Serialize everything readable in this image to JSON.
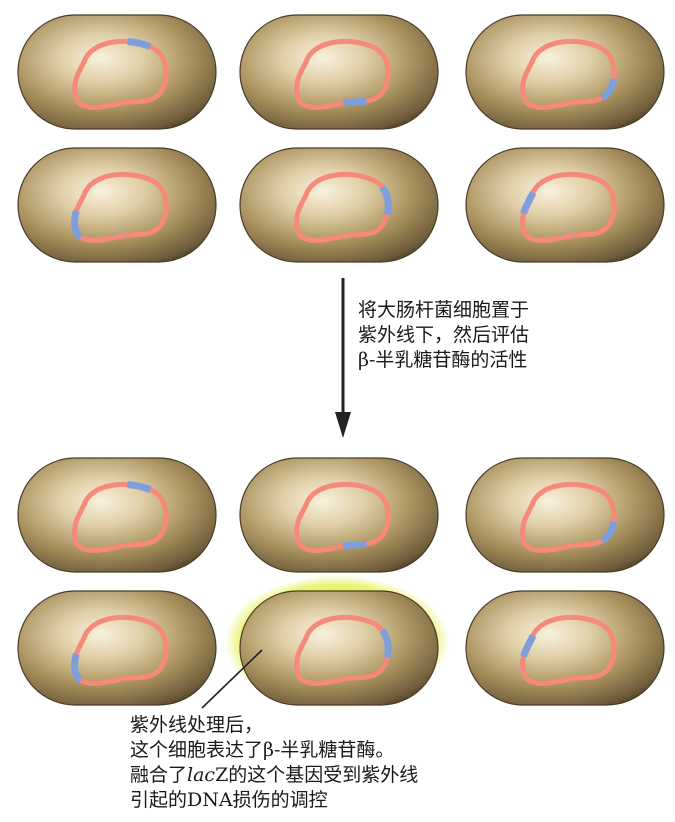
{
  "figure": {
    "step_text": [
      "将大肠杆菌细胞置于",
      "紫外线下，然后评估",
      "β-半乳糖苷酶的活性"
    ],
    "caption": {
      "line1": "紫外线处理后，",
      "line2": "这个细胞表达了β-半乳糖苷酶。",
      "line3_pre": "融合了",
      "line3_italic": "lac",
      "line3_post": "Z的这个基因受到紫外线",
      "line4": "引起的DNA损伤的调控"
    }
  },
  "colors": {
    "cell_body": "#a2895a",
    "cell_highlight": "#f6efdc",
    "cell_shadow": "#3e3220",
    "dna_loop": "#f58a7a",
    "fused_gene": "#7e9fdc",
    "glow": "#e3ee33",
    "arrow": "#222222"
  },
  "icons": {
    "arrow": "down-arrow-icon",
    "pointer": "caption-pointer-line"
  }
}
